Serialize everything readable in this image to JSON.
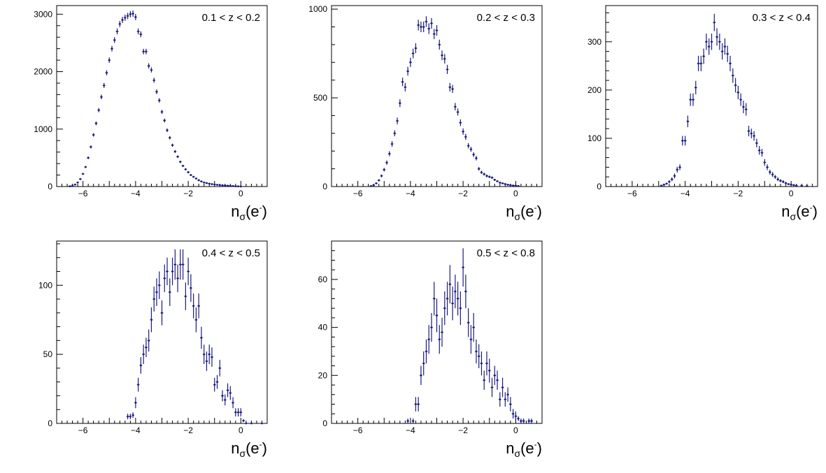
{
  "chart_data": [
    {
      "type": "scatter",
      "label": "0.1 < z < 0.2",
      "xlabel": "nσ(e⁻)",
      "xlim": [
        -7,
        1
      ],
      "ylim": [
        0,
        3150
      ],
      "xticks": [
        -6,
        -4,
        -2,
        0
      ],
      "yticks": [
        0,
        1000,
        2000,
        3000
      ],
      "color": "#1a1a80",
      "points": [
        [
          -6.5,
          5,
          3
        ],
        [
          -6.4,
          15,
          4
        ],
        [
          -6.3,
          35,
          6
        ],
        [
          -6.2,
          70,
          8
        ],
        [
          -6.1,
          130,
          11
        ],
        [
          -6.0,
          220,
          15
        ],
        [
          -5.9,
          340,
          18
        ],
        [
          -5.8,
          500,
          22
        ],
        [
          -5.7,
          690,
          26
        ],
        [
          -5.6,
          900,
          30
        ],
        [
          -5.5,
          1100,
          33
        ],
        [
          -5.4,
          1330,
          36
        ],
        [
          -5.3,
          1560,
          40
        ],
        [
          -5.2,
          1760,
          42
        ],
        [
          -5.1,
          1980,
          44
        ],
        [
          -5.0,
          2200,
          47
        ],
        [
          -4.9,
          2400,
          49
        ],
        [
          -4.8,
          2550,
          50
        ],
        [
          -4.7,
          2700,
          52
        ],
        [
          -4.6,
          2830,
          53
        ],
        [
          -4.5,
          2900,
          54
        ],
        [
          -4.4,
          2940,
          54
        ],
        [
          -4.3,
          2970,
          55
        ],
        [
          -4.2,
          3000,
          55
        ],
        [
          -4.1,
          3010,
          55
        ],
        [
          -4.0,
          2950,
          54
        ],
        [
          -3.9,
          2700,
          52
        ],
        [
          -3.8,
          2650,
          51
        ],
        [
          -3.7,
          2350,
          48
        ],
        [
          -3.6,
          2350,
          48
        ],
        [
          -3.5,
          2100,
          46
        ],
        [
          -3.4,
          2030,
          45
        ],
        [
          -3.3,
          1850,
          43
        ],
        [
          -3.2,
          1650,
          41
        ],
        [
          -3.1,
          1500,
          39
        ],
        [
          -3.0,
          1300,
          36
        ],
        [
          -2.9,
          1150,
          34
        ],
        [
          -2.8,
          980,
          31
        ],
        [
          -2.7,
          850,
          29
        ],
        [
          -2.6,
          720,
          27
        ],
        [
          -2.5,
          610,
          25
        ],
        [
          -2.4,
          520,
          23
        ],
        [
          -2.3,
          430,
          21
        ],
        [
          -2.2,
          360,
          19
        ],
        [
          -2.1,
          300,
          17
        ],
        [
          -2.0,
          250,
          16
        ],
        [
          -1.9,
          200,
          14
        ],
        [
          -1.8,
          170,
          13
        ],
        [
          -1.7,
          140,
          12
        ],
        [
          -1.6,
          110,
          10
        ],
        [
          -1.5,
          90,
          9
        ],
        [
          -1.4,
          70,
          8
        ],
        [
          -1.3,
          60,
          8
        ],
        [
          -1.2,
          50,
          7
        ],
        [
          -1.1,
          42,
          6
        ],
        [
          -1.0,
          36,
          6
        ],
        [
          -0.9,
          30,
          5
        ],
        [
          -0.8,
          26,
          5
        ],
        [
          -0.7,
          22,
          5
        ],
        [
          -0.6,
          18,
          4
        ],
        [
          -0.5,
          15,
          4
        ],
        [
          -0.4,
          12,
          3
        ],
        [
          -0.3,
          9,
          3
        ],
        [
          -0.2,
          6,
          2
        ],
        [
          -0.1,
          4,
          2
        ],
        [
          0.0,
          2,
          1
        ]
      ]
    },
    {
      "type": "scatter",
      "label": "0.2 < z < 0.3",
      "xlabel": "nσ(e⁻)",
      "xlim": [
        -7,
        1
      ],
      "ylim": [
        0,
        1020
      ],
      "xticks": [
        -6,
        -4,
        -2,
        0
      ],
      "yticks": [
        0,
        500,
        1000
      ],
      "color": "#1a1a80",
      "points": [
        [
          -5.5,
          3,
          2
        ],
        [
          -5.4,
          8,
          3
        ],
        [
          -5.3,
          18,
          4
        ],
        [
          -5.2,
          35,
          6
        ],
        [
          -5.1,
          60,
          8
        ],
        [
          -5.0,
          95,
          10
        ],
        [
          -4.9,
          135,
          12
        ],
        [
          -4.8,
          185,
          14
        ],
        [
          -4.7,
          240,
          16
        ],
        [
          -4.6,
          300,
          17
        ],
        [
          -4.5,
          370,
          19
        ],
        [
          -4.4,
          470,
          22
        ],
        [
          -4.3,
          590,
          24
        ],
        [
          -4.2,
          560,
          24
        ],
        [
          -4.1,
          650,
          25
        ],
        [
          -4.0,
          700,
          26
        ],
        [
          -3.9,
          750,
          27
        ],
        [
          -3.8,
          780,
          28
        ],
        [
          -3.7,
          910,
          30
        ],
        [
          -3.6,
          900,
          30
        ],
        [
          -3.5,
          900,
          30
        ],
        [
          -3.4,
          930,
          30
        ],
        [
          -3.3,
          890,
          30
        ],
        [
          -3.2,
          920,
          30
        ],
        [
          -3.1,
          860,
          29
        ],
        [
          -3.0,
          880,
          30
        ],
        [
          -2.9,
          800,
          28
        ],
        [
          -2.8,
          740,
          27
        ],
        [
          -2.7,
          720,
          27
        ],
        [
          -2.6,
          660,
          26
        ],
        [
          -2.5,
          560,
          24
        ],
        [
          -2.4,
          550,
          23
        ],
        [
          -2.3,
          450,
          21
        ],
        [
          -2.2,
          420,
          20
        ],
        [
          -2.1,
          360,
          19
        ],
        [
          -2.0,
          310,
          18
        ],
        [
          -1.9,
          280,
          17
        ],
        [
          -1.8,
          230,
          15
        ],
        [
          -1.7,
          210,
          14
        ],
        [
          -1.6,
          180,
          13
        ],
        [
          -1.5,
          160,
          13
        ],
        [
          -1.4,
          100,
          10
        ],
        [
          -1.3,
          80,
          9
        ],
        [
          -1.2,
          70,
          8
        ],
        [
          -1.1,
          60,
          8
        ],
        [
          -1.0,
          55,
          7
        ],
        [
          -0.9,
          50,
          7
        ],
        [
          -0.8,
          38,
          6
        ],
        [
          -0.7,
          30,
          5
        ],
        [
          -0.6,
          22,
          5
        ],
        [
          -0.5,
          18,
          4
        ],
        [
          -0.4,
          14,
          4
        ],
        [
          -0.3,
          10,
          3
        ],
        [
          -0.2,
          8,
          3
        ],
        [
          -0.1,
          6,
          2
        ],
        [
          0.0,
          5,
          2
        ],
        [
          0.1,
          3,
          2
        ]
      ]
    },
    {
      "type": "scatter",
      "label": "0.3 < z < 0.4",
      "xlabel": "nσ(e⁻)",
      "xlim": [
        -7,
        1
      ],
      "ylim": [
        0,
        375
      ],
      "xticks": [
        -6,
        -4,
        -2,
        0
      ],
      "yticks": [
        0,
        100,
        200,
        300
      ],
      "color": "#1a1a80",
      "points": [
        [
          -4.9,
          2,
          1
        ],
        [
          -4.8,
          4,
          2
        ],
        [
          -4.7,
          6,
          2
        ],
        [
          -4.6,
          10,
          3
        ],
        [
          -4.5,
          15,
          4
        ],
        [
          -4.4,
          22,
          5
        ],
        [
          -4.3,
          35,
          6
        ],
        [
          -4.2,
          40,
          6
        ],
        [
          -4.1,
          95,
          10
        ],
        [
          -4.0,
          95,
          10
        ],
        [
          -3.9,
          135,
          12
        ],
        [
          -3.8,
          180,
          13
        ],
        [
          -3.7,
          180,
          13
        ],
        [
          -3.6,
          205,
          14
        ],
        [
          -3.5,
          255,
          16
        ],
        [
          -3.4,
          255,
          16
        ],
        [
          -3.3,
          270,
          16
        ],
        [
          -3.2,
          300,
          17
        ],
        [
          -3.1,
          290,
          17
        ],
        [
          -3.0,
          300,
          17
        ],
        [
          -2.9,
          340,
          18
        ],
        [
          -2.8,
          310,
          18
        ],
        [
          -2.7,
          300,
          17
        ],
        [
          -2.6,
          280,
          17
        ],
        [
          -2.5,
          290,
          17
        ],
        [
          -2.4,
          275,
          17
        ],
        [
          -2.3,
          255,
          16
        ],
        [
          -2.2,
          230,
          15
        ],
        [
          -2.1,
          210,
          15
        ],
        [
          -2.0,
          195,
          14
        ],
        [
          -1.9,
          180,
          13
        ],
        [
          -1.8,
          165,
          13
        ],
        [
          -1.7,
          160,
          13
        ],
        [
          -1.6,
          115,
          11
        ],
        [
          -1.5,
          110,
          10
        ],
        [
          -1.4,
          105,
          10
        ],
        [
          -1.3,
          90,
          9
        ],
        [
          -1.2,
          75,
          9
        ],
        [
          -1.1,
          70,
          8
        ],
        [
          -1.0,
          50,
          7
        ],
        [
          -0.9,
          40,
          6
        ],
        [
          -0.8,
          30,
          5
        ],
        [
          -0.7,
          25,
          5
        ],
        [
          -0.6,
          20,
          4
        ],
        [
          -0.5,
          15,
          4
        ],
        [
          -0.4,
          12,
          3
        ],
        [
          -0.3,
          10,
          3
        ],
        [
          -0.2,
          7,
          3
        ],
        [
          -0.1,
          5,
          2
        ],
        [
          0.0,
          4,
          2
        ],
        [
          0.1,
          3,
          2
        ],
        [
          0.2,
          2,
          1
        ],
        [
          0.4,
          2,
          1
        ],
        [
          0.6,
          1,
          1
        ]
      ]
    },
    {
      "type": "scatter",
      "label": "0.4 < z < 0.5",
      "xlabel": "nσ(e⁻)",
      "xlim": [
        -7,
        1
      ],
      "ylim": [
        0,
        132
      ],
      "xticks": [
        -6,
        -4,
        -2,
        0
      ],
      "yticks": [
        0,
        50,
        100
      ],
      "color": "#1a1a80",
      "points": [
        [
          -4.3,
          5,
          2
        ],
        [
          -4.2,
          5,
          2
        ],
        [
          -4.1,
          6,
          2
        ],
        [
          -4.0,
          15,
          4
        ],
        [
          -3.9,
          28,
          5
        ],
        [
          -3.8,
          42,
          6
        ],
        [
          -3.7,
          50,
          7
        ],
        [
          -3.6,
          55,
          7
        ],
        [
          -3.5,
          60,
          8
        ],
        [
          -3.4,
          75,
          9
        ],
        [
          -3.3,
          90,
          9
        ],
        [
          -3.2,
          95,
          10
        ],
        [
          -3.1,
          100,
          10
        ],
        [
          -3.0,
          80,
          9
        ],
        [
          -2.9,
          105,
          10
        ],
        [
          -2.8,
          110,
          10
        ],
        [
          -2.7,
          95,
          10
        ],
        [
          -2.6,
          110,
          10
        ],
        [
          -2.5,
          115,
          11
        ],
        [
          -2.4,
          105,
          10
        ],
        [
          -2.3,
          115,
          11
        ],
        [
          -2.2,
          115,
          11
        ],
        [
          -2.1,
          92,
          10
        ],
        [
          -2.0,
          110,
          10
        ],
        [
          -1.9,
          98,
          10
        ],
        [
          -1.8,
          85,
          9
        ],
        [
          -1.7,
          75,
          9
        ],
        [
          -1.6,
          85,
          9
        ],
        [
          -1.5,
          62,
          8
        ],
        [
          -1.4,
          50,
          7
        ],
        [
          -1.3,
          45,
          7
        ],
        [
          -1.2,
          50,
          7
        ],
        [
          -1.1,
          48,
          7
        ],
        [
          -1.0,
          28,
          5
        ],
        [
          -0.9,
          30,
          5
        ],
        [
          -0.8,
          40,
          6
        ],
        [
          -0.7,
          20,
          4
        ],
        [
          -0.6,
          17,
          4
        ],
        [
          -0.5,
          24,
          5
        ],
        [
          -0.4,
          22,
          5
        ],
        [
          -0.3,
          15,
          4
        ],
        [
          -0.2,
          8,
          3
        ],
        [
          -0.1,
          8,
          3
        ],
        [
          0.0,
          8,
          3
        ],
        [
          0.1,
          2,
          1
        ],
        [
          0.2,
          0,
          1
        ],
        [
          0.4,
          0,
          1
        ],
        [
          0.8,
          0,
          1
        ]
      ]
    },
    {
      "type": "scatter",
      "label": "0.5 < z < 0.8",
      "xlabel": "nσ(e⁻)",
      "xlim": [
        -7,
        1
      ],
      "ylim": [
        0,
        76
      ],
      "xticks": [
        -6,
        -4,
        -2,
        0
      ],
      "yticks": [
        0,
        20,
        40,
        60
      ],
      "color": "#1a1a80",
      "points": [
        [
          -4.1,
          1,
          1
        ],
        [
          -3.9,
          1,
          1
        ],
        [
          -3.8,
          8,
          3
        ],
        [
          -3.7,
          8,
          3
        ],
        [
          -3.6,
          20,
          4
        ],
        [
          -3.5,
          25,
          5
        ],
        [
          -3.4,
          30,
          5
        ],
        [
          -3.3,
          35,
          6
        ],
        [
          -3.2,
          40,
          6
        ],
        [
          -3.1,
          52,
          7
        ],
        [
          -3.0,
          45,
          7
        ],
        [
          -2.9,
          35,
          6
        ],
        [
          -2.8,
          38,
          6
        ],
        [
          -2.7,
          48,
          7
        ],
        [
          -2.6,
          52,
          7
        ],
        [
          -2.5,
          58,
          8
        ],
        [
          -2.4,
          50,
          7
        ],
        [
          -2.3,
          55,
          7
        ],
        [
          -2.2,
          52,
          7
        ],
        [
          -2.1,
          48,
          7
        ],
        [
          -2.0,
          65,
          8
        ],
        [
          -1.9,
          55,
          7
        ],
        [
          -1.8,
          42,
          6
        ],
        [
          -1.7,
          35,
          6
        ],
        [
          -1.6,
          40,
          6
        ],
        [
          -1.5,
          30,
          5
        ],
        [
          -1.4,
          28,
          5
        ],
        [
          -1.3,
          25,
          5
        ],
        [
          -1.2,
          18,
          4
        ],
        [
          -1.1,
          25,
          5
        ],
        [
          -1.0,
          22,
          5
        ],
        [
          -0.9,
          15,
          4
        ],
        [
          -0.8,
          20,
          4
        ],
        [
          -0.7,
          18,
          4
        ],
        [
          -0.6,
          10,
          3
        ],
        [
          -0.5,
          15,
          4
        ],
        [
          -0.4,
          10,
          3
        ],
        [
          -0.3,
          12,
          3
        ],
        [
          -0.2,
          8,
          3
        ],
        [
          -0.1,
          4,
          2
        ],
        [
          0.0,
          3,
          2
        ],
        [
          0.1,
          2,
          1
        ],
        [
          0.2,
          1,
          1
        ],
        [
          0.3,
          1,
          1
        ],
        [
          0.5,
          1,
          1
        ],
        [
          0.6,
          1,
          1
        ]
      ]
    }
  ]
}
